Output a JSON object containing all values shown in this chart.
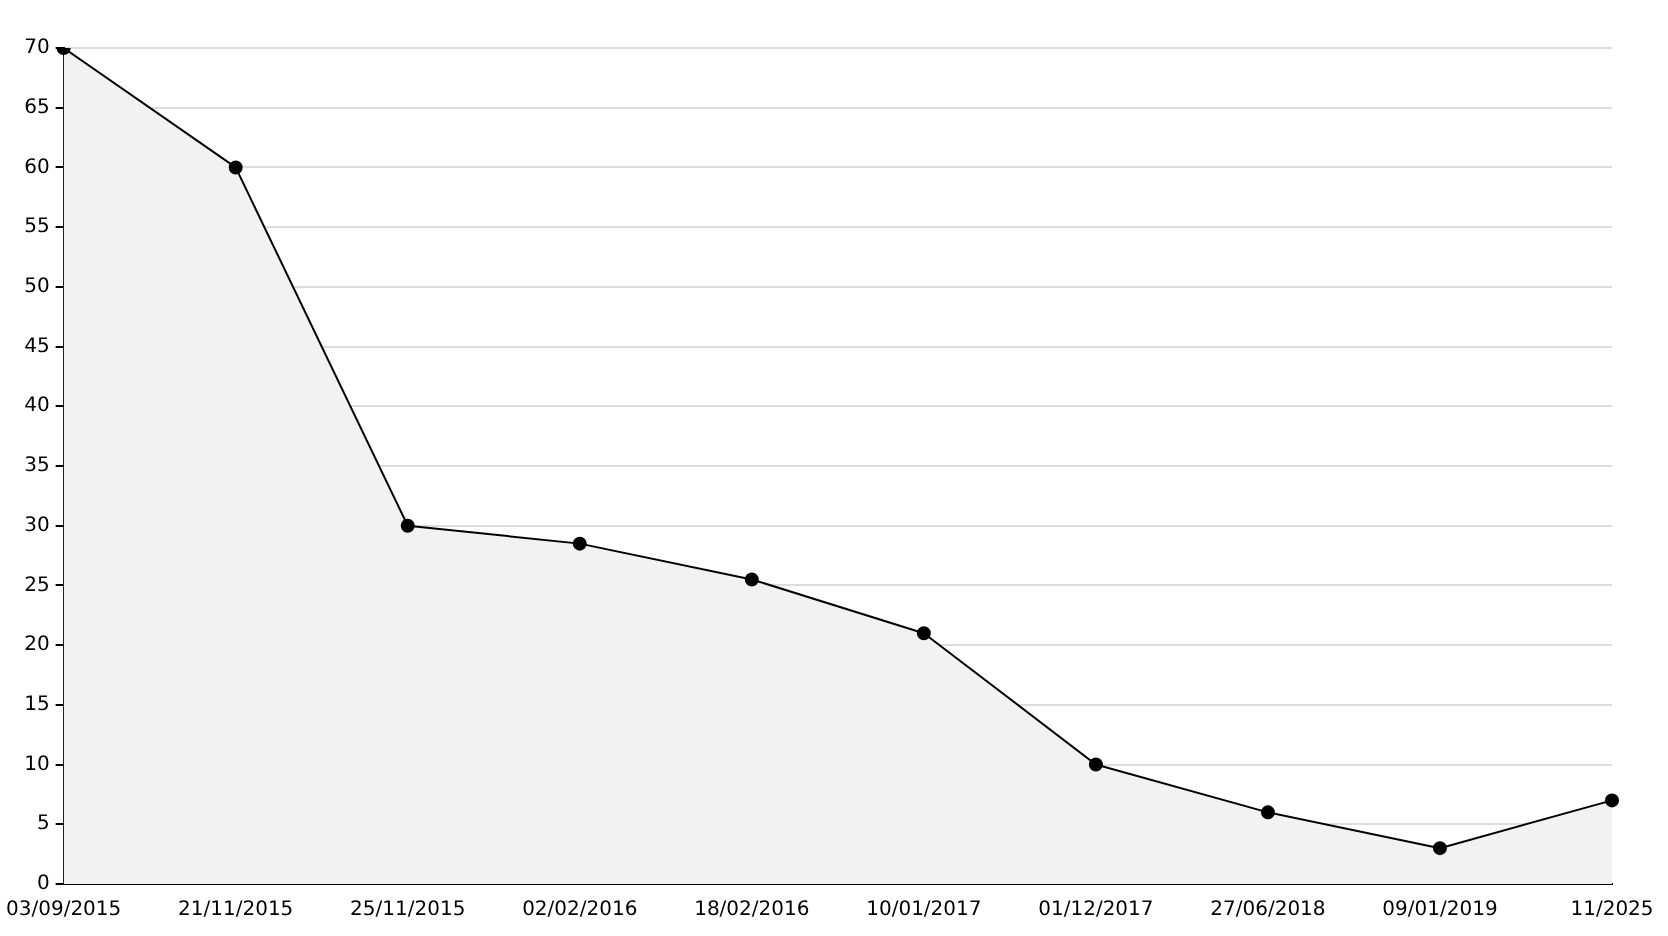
{
  "chart_data": {
    "type": "area",
    "categories": [
      "03/09/2015",
      "21/11/2015",
      "25/11/2015",
      "02/02/2016",
      "18/02/2016",
      "10/01/2017",
      "01/12/2017",
      "27/06/2018",
      "09/01/2019",
      "11/2025"
    ],
    "series": [
      {
        "color": "#000000",
        "values": [
          70,
          60,
          30,
          28.5,
          25.5,
          21,
          10,
          6,
          3,
          7
        ]
      }
    ],
    "ylim": [
      0,
      70
    ],
    "yticks": [
      0,
      5,
      10,
      15,
      20,
      25,
      30,
      35,
      40,
      45,
      50,
      55,
      60,
      65,
      70
    ],
    "grid": "y",
    "marker": "circle"
  }
}
